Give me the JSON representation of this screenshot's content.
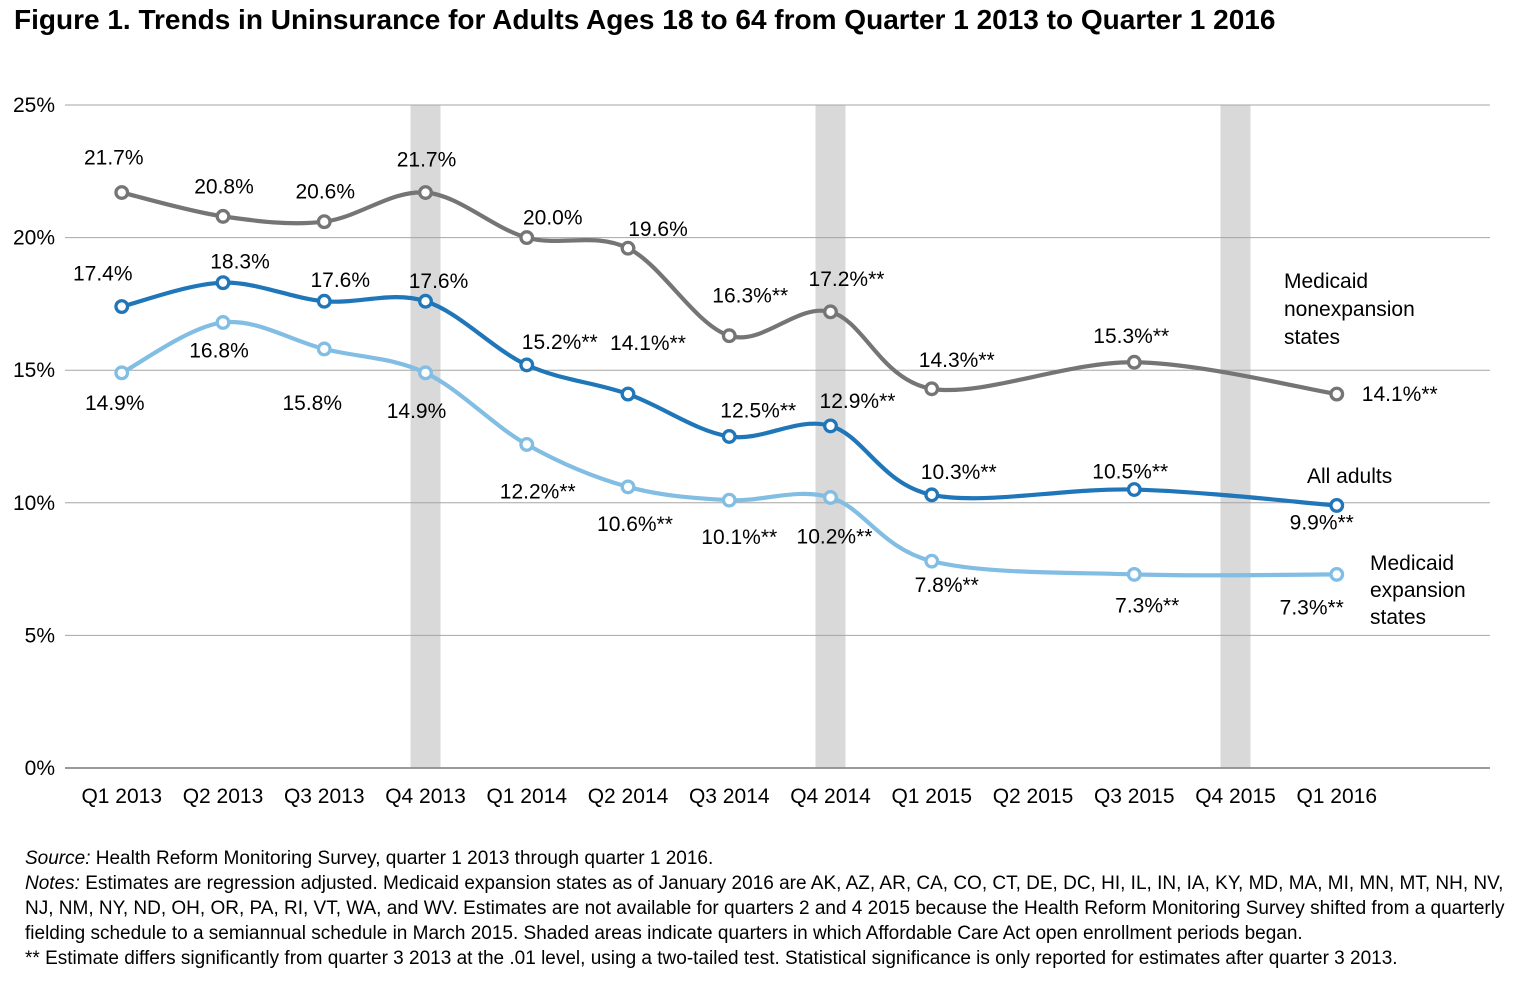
{
  "title": "Figure 1. Trends in Uninsurance for Adults Ages 18 to 64 from Quarter 1 2013 to Quarter 1 2016",
  "legend": {
    "nonexpansion": "Medicaid nonexpansion states",
    "all_adults": "All adults",
    "expansion": "Medicaid expansion states"
  },
  "notes": {
    "source_label": "Source:",
    "source_text": "Health Reform Monitoring Survey, quarter 1 2013 through quarter 1 2016.",
    "notes_label": "Notes:",
    "notes_text": "Estimates are regression adjusted. Medicaid expansion states as of January 2016 are AK, AZ, AR, CA, CO, CT, DE, DC, HI, IL, IN, IA, KY, MD, MA, MI, MN, MT, NH, NV, NJ, NM, NY, ND, OH, OR, PA, RI, VT, WA, and WV. Estimates are not available for quarters 2 and 4 2015 because the Health Reform Monitoring Survey shifted from a quarterly fielding schedule to a semiannual schedule in March 2015. Shaded areas indicate quarters in which Affordable Care Act open enrollment periods began.",
    "footnote": "** Estimate differs significantly from quarter 3 2013 at the .01 level, using a two-tailed test. Statistical significance is only reported for estimates after quarter 3 2013."
  },
  "chart_data": {
    "type": "line",
    "categories": [
      "Q1 2013",
      "Q2 2013",
      "Q3 2013",
      "Q4 2013",
      "Q1 2014",
      "Q2 2014",
      "Q3 2014",
      "Q4 2014",
      "Q1 2015",
      "Q2 2015",
      "Q3 2015",
      "Q4 2015",
      "Q1 2016"
    ],
    "ylim": [
      0,
      25
    ],
    "yticks": [
      0,
      5,
      10,
      15,
      20,
      25
    ],
    "ytick_labels": [
      "0%",
      "5%",
      "10%",
      "15%",
      "20%",
      "25%"
    ],
    "grid": true,
    "legend_position": "right-of-lines",
    "shaded_quarters": [
      "Q4 2013",
      "Q4 2014",
      "Q4 2015"
    ],
    "shading_meaning": "quarters in which Affordable Care Act open enrollment periods began",
    "colors": {
      "grid": "#A6A6A6",
      "axis": "#8C8C8C",
      "band": "#D9D9D9",
      "label_text": "#000000"
    },
    "series": [
      {
        "name": "Medicaid nonexpansion states",
        "color": "#757575",
        "values": [
          21.7,
          20.8,
          20.6,
          21.7,
          20.0,
          19.6,
          16.3,
          17.2,
          14.3,
          null,
          15.3,
          null,
          14.1
        ],
        "labels": [
          "21.7%",
          "20.8%",
          "20.6%",
          "21.7%",
          "20.0%",
          "19.6%",
          "16.3%**",
          "17.2%**",
          "14.3%**",
          null,
          "15.3%**",
          null,
          "14.1%**"
        ],
        "label_offsets": [
          [
            -8,
            -35
          ],
          [
            1,
            -30
          ],
          [
            1,
            -30
          ],
          [
            1,
            -33
          ],
          [
            26,
            -20
          ],
          [
            30,
            -19
          ],
          [
            21,
            -40
          ],
          [
            16,
            -33
          ],
          [
            25,
            -29
          ],
          null,
          [
            -3,
            -26
          ],
          null,
          [
            63,
            0
          ]
        ]
      },
      {
        "name": "All adults",
        "color": "#1F76B8",
        "values": [
          17.4,
          18.3,
          17.6,
          17.6,
          15.2,
          14.1,
          12.5,
          12.9,
          10.3,
          null,
          10.5,
          null,
          9.9
        ],
        "labels": [
          "17.4%",
          "18.3%",
          "17.6%",
          "17.6%",
          "15.2%**",
          "14.1%**",
          "12.5%**",
          "12.9%**",
          "10.3%**",
          null,
          "10.5%**",
          null,
          "9.9%**"
        ],
        "label_offsets": [
          [
            -19,
            -33
          ],
          [
            17,
            -21
          ],
          [
            16,
            -21
          ],
          [
            13,
            -20
          ],
          [
            33,
            -23
          ],
          [
            20,
            -51
          ],
          [
            29,
            -26
          ],
          [
            27,
            -25
          ],
          [
            27,
            -23
          ],
          null,
          [
            -4,
            -18
          ],
          null,
          [
            -15,
            17
          ]
        ]
      },
      {
        "name": "Medicaid expansion states",
        "color": "#82BDE4",
        "values": [
          14.9,
          16.8,
          15.8,
          14.9,
          12.2,
          10.6,
          10.1,
          10.2,
          7.8,
          null,
          7.3,
          null,
          7.3
        ],
        "labels": [
          "14.9%",
          "16.8%",
          "15.8%",
          "14.9%",
          "12.2%**",
          "10.6%**",
          "10.1%**",
          "10.2%**",
          "7.8%**",
          null,
          "7.3%**",
          null,
          "7.3%**"
        ],
        "label_offsets": [
          [
            -7,
            30
          ],
          [
            -4,
            28
          ],
          [
            -12,
            54
          ],
          [
            -9,
            38
          ],
          [
            11,
            47
          ],
          [
            7,
            37
          ],
          [
            10,
            37
          ],
          [
            4,
            39
          ],
          [
            15,
            24
          ],
          null,
          [
            13,
            31
          ],
          null,
          [
            -25,
            33
          ]
        ]
      }
    ]
  }
}
